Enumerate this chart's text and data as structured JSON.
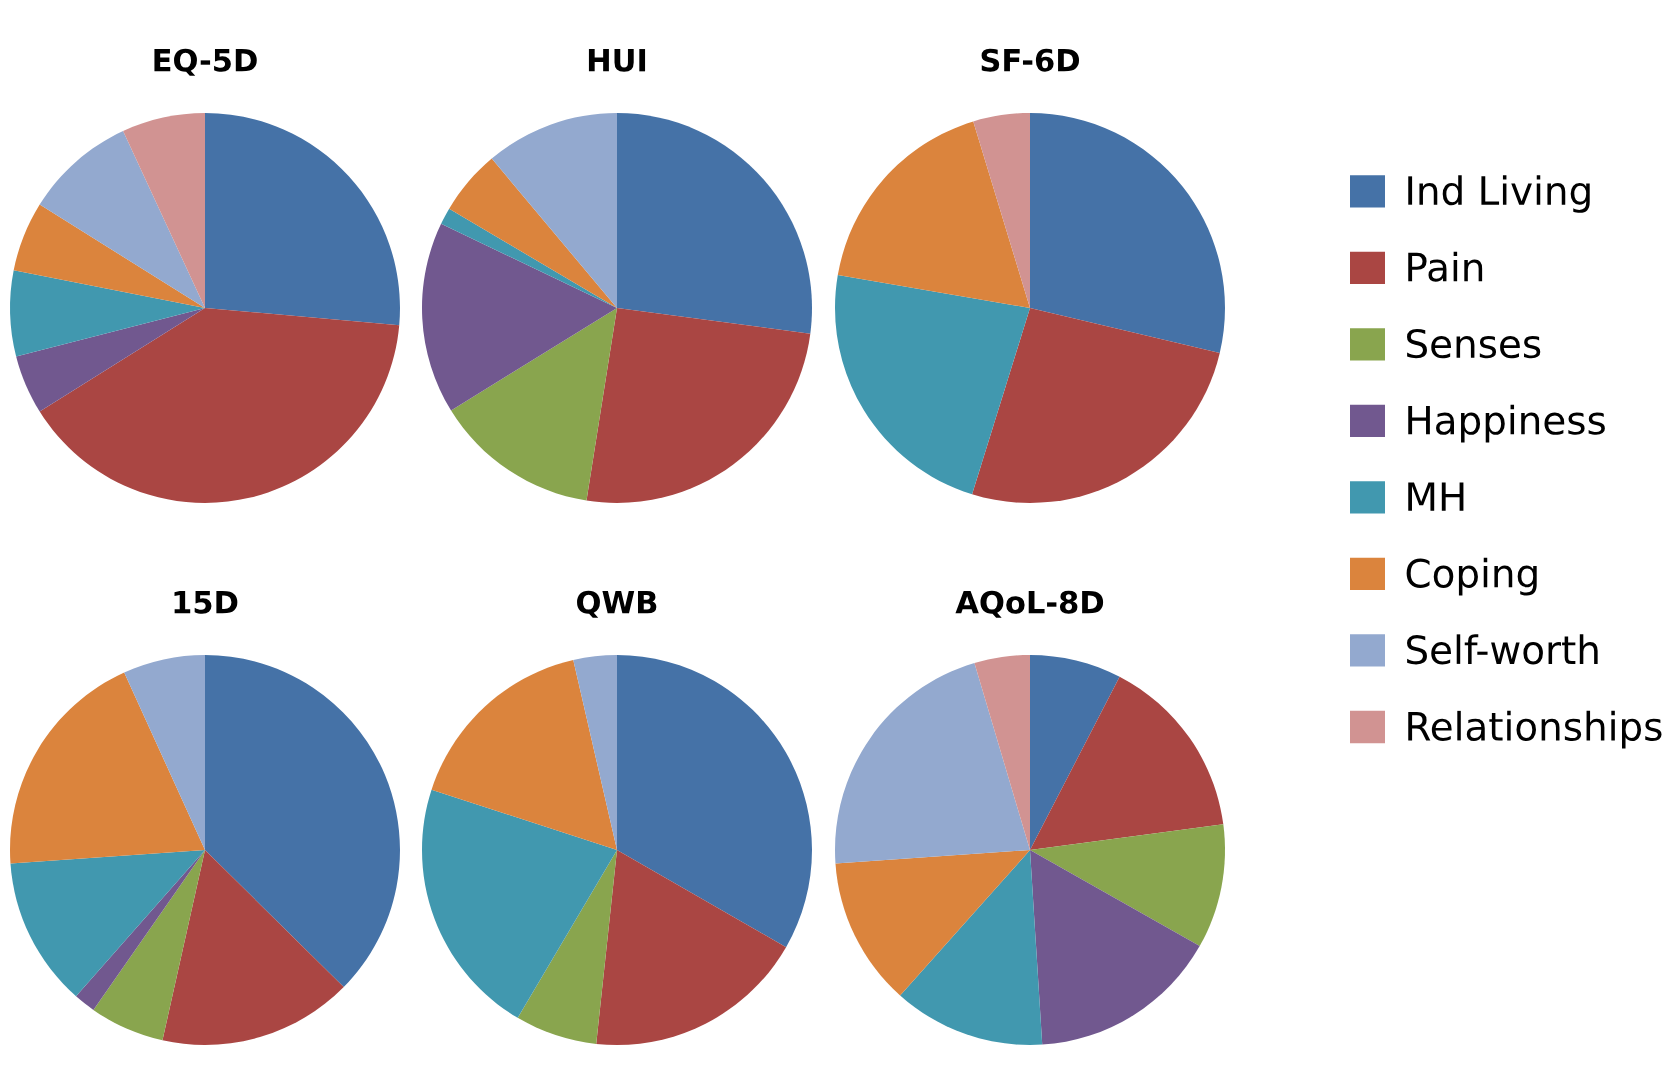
{
  "chart_data": [
    {
      "type": "pie",
      "title": "EQ-5D",
      "legend": "right",
      "categories": [
        "Ind Living",
        "Pain",
        "Senses",
        "Happiness",
        "MH",
        "Coping",
        "Self-worth",
        "Relationships"
      ],
      "colors": [
        "#4572a7",
        "#aa4643",
        "#89a54e",
        "#71588f",
        "#4198af",
        "#db843d",
        "#93a9cf",
        "#d19392"
      ],
      "values": [
        26.4,
        39.7,
        0,
        4.9,
        7.1,
        5.8,
        9.2,
        6.9
      ]
    },
    {
      "type": "pie",
      "title": "HUI",
      "categories": [
        null,
        null,
        null,
        null,
        null,
        null,
        null,
        null
      ],
      "colors": [
        "#4572a7",
        "#aa4643",
        "#89a54e",
        "#71588f",
        "#4198af",
        "#db843d",
        "#93a9cf",
        "#d19392"
      ],
      "values": [
        27.1,
        25.4,
        13.7,
        15.9,
        1.4,
        5.4,
        11.1,
        0
      ]
    },
    {
      "type": "pie",
      "title": "SF-6D",
      "categories": [
        null,
        null,
        null,
        null,
        null,
        null,
        null,
        null
      ],
      "colors": [
        "#4572a7",
        "#aa4643",
        "#89a54e",
        "#71588f",
        "#4198af",
        "#db843d",
        "#93a9cf",
        "#d19392"
      ],
      "values": [
        28.7,
        26.1,
        0,
        0,
        22.9,
        17.6,
        0,
        4.7
      ]
    },
    {
      "type": "pie",
      "title": "15D",
      "categories": [
        null,
        null,
        null,
        null,
        null,
        null,
        null,
        null
      ],
      "colors": [
        "#4572a7",
        "#aa4643",
        "#89a54e",
        "#71588f",
        "#4198af",
        "#db843d",
        "#93a9cf",
        "#d19392"
      ],
      "values": [
        37.4,
        16.1,
        6.2,
        1.8,
        12.4,
        19.3,
        6.8,
        0
      ]
    },
    {
      "type": "pie",
      "title": "QWB",
      "categories": [
        null,
        null,
        null,
        null,
        null,
        null,
        null,
        null
      ],
      "colors": [
        "#4572a7",
        "#aa4643",
        "#89a54e",
        "#71588f",
        "#4198af",
        "#db843d",
        "#93a9cf",
        "#d19392"
      ],
      "values": [
        33.3,
        18.4,
        6.8,
        0,
        21.5,
        16.4,
        3.6,
        0
      ]
    },
    {
      "type": "pie",
      "title": "AQoL-8D",
      "categories": [
        null,
        null,
        null,
        null,
        null,
        null,
        null,
        null
      ],
      "colors": [
        "#4572a7",
        "#aa4643",
        "#89a54e",
        "#71588f",
        "#4198af",
        "#db843d",
        "#93a9cf",
        "#d19392"
      ],
      "values": [
        7.6,
        15.3,
        10.3,
        15.8,
        12.6,
        12.3,
        21.5,
        4.6
      ]
    }
  ]
}
